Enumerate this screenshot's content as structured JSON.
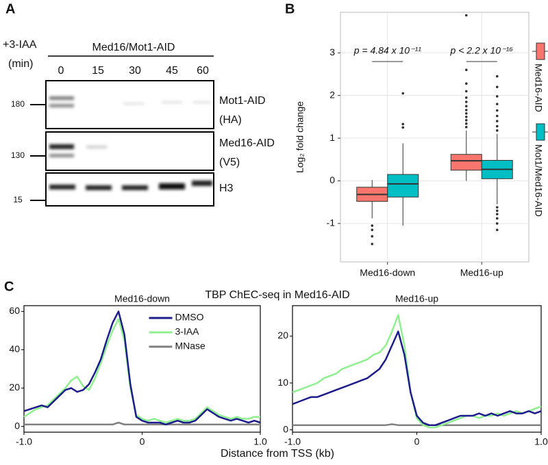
{
  "panel_labels": [
    "A",
    "B",
    "C"
  ],
  "blot": {
    "treatment": "+3-IAA",
    "time_unit": "(min)",
    "strain": "Med16/Mot1-AID",
    "times": [
      "0",
      "15",
      "30",
      "45",
      "60"
    ],
    "rows": [
      {
        "marker": "180",
        "protein": "Mot1-AID",
        "tag": "(HA)"
      },
      {
        "marker": "130",
        "protein": "Med16-AID",
        "tag": "(V5)"
      },
      {
        "marker": "15",
        "protein": "H3"
      }
    ]
  },
  "figure_c": {
    "title": "TBP ChEC-seq in Med16-AID",
    "x_label": "Distance from TSS (kb)"
  },
  "chart_data": [
    {
      "type": "box",
      "y_label": "Log₂ fold change",
      "categories": [
        "Med16-down",
        "Med16-up"
      ],
      "significance": [
        "p = 4.84 x 10⁻¹¹",
        "p < 2.2 x 10⁻¹⁶"
      ],
      "ylim": [
        -1.9,
        3.95
      ],
      "yticks": [
        -1,
        0,
        1,
        2,
        3
      ],
      "grid": true,
      "legend": "right",
      "series": [
        {
          "name": "Med16-AID",
          "color": "#f8766d",
          "boxes": [
            {
              "low": -0.88,
              "q1": -0.48,
              "median": -0.32,
              "q3": -0.15,
              "high": 0.02,
              "outliers": [
                -1.05,
                -1.15,
                -1.3,
                -1.48
              ]
            },
            {
              "low": 0,
              "q1": 0.25,
              "median": 0.47,
              "q3": 0.62,
              "high": 1.18,
              "outliers": [
                1.26,
                1.34,
                1.42,
                1.5,
                1.58,
                1.66,
                1.75,
                1.85,
                1.95,
                2.1,
                2.28,
                2.6,
                3.88
              ]
            }
          ]
        },
        {
          "name": "Mot1/Med16-AID",
          "color": "#00bfc4",
          "boxes": [
            {
              "low": -1.05,
              "q1": -0.38,
              "median": -0.07,
              "q3": 0.15,
              "high": 0.88,
              "outliers": [
                1.25,
                1.33,
                2.05
              ]
            },
            {
              "low": -0.55,
              "q1": 0.05,
              "median": 0.27,
              "q3": 0.48,
              "high": 1.1,
              "outliers": [
                1.18,
                1.28,
                1.4,
                1.52,
                1.65,
                1.8,
                1.98,
                2.2,
                2.45,
                -0.62,
                -0.7,
                -0.78,
                -0.88,
                -1.0,
                -1.15
              ]
            }
          ]
        }
      ]
    },
    {
      "type": "line",
      "title": "Med16-down",
      "x": [
        -1,
        -0.95,
        -0.9,
        -0.85,
        -0.8,
        -0.75,
        -0.7,
        -0.65,
        -0.6,
        -0.55,
        -0.5,
        -0.45,
        -0.4,
        -0.35,
        -0.3,
        -0.25,
        -0.2,
        -0.15,
        -0.1,
        -0.05,
        0,
        0.05,
        0.1,
        0.15,
        0.2,
        0.25,
        0.3,
        0.35,
        0.4,
        0.45,
        0.5,
        0.55,
        0.6,
        0.65,
        0.7,
        0.75,
        0.8,
        0.85,
        0.9,
        0.95,
        1
      ],
      "xlim": [
        -1,
        1
      ],
      "xticks": [
        {
          "value": -1,
          "label": "-1.0"
        },
        0,
        {
          "value": 1,
          "label": "1.0"
        }
      ],
      "ylim": [
        -3,
        63
      ],
      "yticks": [
        0,
        20,
        40,
        60
      ],
      "legend": "upper center",
      "series": [
        {
          "name": "DMSO",
          "color": "#1c1c8c",
          "values": [
            8,
            9,
            10,
            11,
            10,
            13,
            16,
            19,
            20,
            18,
            19,
            22,
            28,
            35,
            45,
            54,
            60,
            48,
            22,
            5,
            3,
            2,
            2,
            2,
            1,
            2,
            3,
            2,
            2,
            3,
            6,
            9,
            7,
            5,
            4,
            3,
            4,
            3,
            2,
            3,
            2
          ]
        },
        {
          "name": "3-IAA",
          "color": "#8ef08e",
          "values": [
            5,
            7,
            9,
            10,
            11,
            14,
            17,
            20,
            24,
            26,
            21,
            19,
            25,
            33,
            42,
            50,
            56,
            45,
            20,
            6,
            4,
            3,
            4,
            3,
            2,
            3,
            4,
            3,
            3,
            4,
            7,
            10,
            8,
            6,
            5,
            4,
            5,
            4,
            4,
            5,
            5
          ]
        },
        {
          "name": "MNase",
          "color": "#808080",
          "values": [
            1,
            1,
            1,
            1,
            1,
            1,
            1,
            1,
            1,
            1,
            1,
            1,
            1,
            1,
            1,
            1,
            2,
            1,
            1,
            1,
            1,
            1,
            1,
            1,
            1,
            1,
            1,
            1,
            1,
            1,
            1,
            1,
            1,
            1,
            1,
            1,
            1,
            1,
            1,
            1,
            1
          ]
        }
      ]
    },
    {
      "type": "line",
      "title": "Med16-up",
      "x": [
        -1,
        -0.95,
        -0.9,
        -0.85,
        -0.8,
        -0.75,
        -0.7,
        -0.65,
        -0.6,
        -0.55,
        -0.5,
        -0.45,
        -0.4,
        -0.35,
        -0.3,
        -0.25,
        -0.2,
        -0.15,
        -0.1,
        -0.05,
        0,
        0.05,
        0.1,
        0.15,
        0.2,
        0.25,
        0.3,
        0.35,
        0.4,
        0.45,
        0.5,
        0.55,
        0.6,
        0.65,
        0.7,
        0.75,
        0.8,
        0.85,
        0.9,
        0.95,
        1
      ],
      "xlim": [
        -1,
        1
      ],
      "xticks": [
        {
          "value": -1,
          "label": "-1.0"
        },
        0,
        {
          "value": 1,
          "label": "1.0"
        }
      ],
      "ylim": [
        -0.5,
        26.5
      ],
      "yticks": [
        0,
        10,
        20
      ],
      "series": [
        {
          "name": "DMSO",
          "color": "#1c1c8c",
          "values": [
            5.5,
            6,
            6.5,
            7,
            7,
            7.5,
            8,
            8.5,
            9,
            9.5,
            10,
            10.5,
            11,
            12,
            13,
            15,
            18,
            21,
            16,
            8,
            3,
            1.5,
            1,
            1,
            1.5,
            2,
            2.5,
            3,
            3,
            3,
            3.5,
            3,
            3.5,
            3,
            3.5,
            4,
            3.5,
            3.5,
            4,
            3.5,
            4
          ]
        },
        {
          "name": "3-IAA",
          "color": "#8ef08e",
          "values": [
            8,
            8.5,
            9,
            9.5,
            10,
            11,
            11.5,
            12,
            13,
            13.5,
            14,
            14.5,
            15,
            16,
            16.5,
            18,
            21,
            24.5,
            18,
            8,
            2.5,
            1,
            0.5,
            0.5,
            1,
            1.5,
            2,
            2.5,
            3,
            3,
            2.5,
            3,
            3,
            3.5,
            3,
            3.5,
            4,
            3.5,
            4,
            4.5,
            5
          ]
        },
        {
          "name": "MNase",
          "color": "#808080",
          "values": [
            1,
            1,
            1,
            1,
            1,
            1,
            1,
            1,
            1,
            1,
            1,
            1,
            1,
            1,
            1,
            1,
            1.2,
            1,
            1,
            1,
            1,
            1,
            1,
            1,
            1,
            1,
            1,
            1,
            1,
            1,
            1,
            1,
            1,
            1,
            1,
            1,
            1,
            1,
            1,
            1,
            1
          ]
        }
      ]
    }
  ]
}
